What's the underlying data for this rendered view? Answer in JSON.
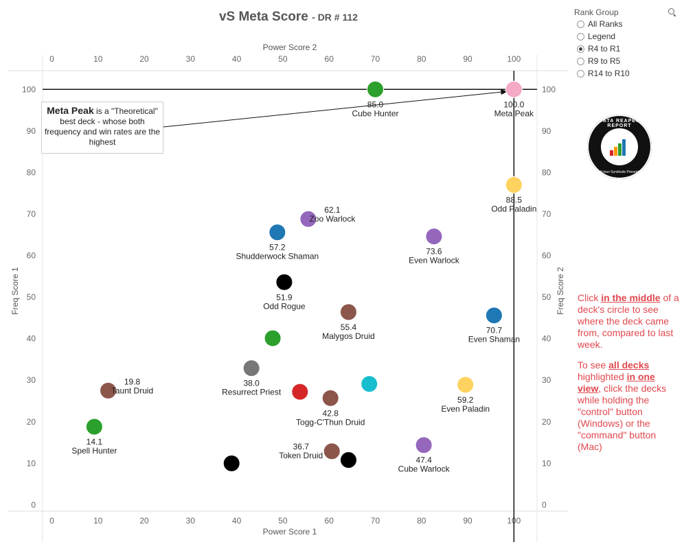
{
  "title": {
    "main": "vS Meta Score",
    "sub": "DR # 112"
  },
  "filter": {
    "title": "Rank Group",
    "search_icon": "search-icon",
    "options": [
      "All Ranks",
      "Legend",
      "R4 to R1",
      "R9 to R5",
      "R14 to R10"
    ],
    "selected": "R4 to R1"
  },
  "logo": {
    "top_text": "DATA REAPER REPORT",
    "bottom_text": "Vicious Syndicate Presents"
  },
  "callout": {
    "bold": "Meta Peak",
    "rest": " is a \"Theoretical\" best deck - whose both frequency and win rates are the highest"
  },
  "note": {
    "p1": [
      {
        "t": "Click ",
        "b": false
      },
      {
        "t": "in the middle",
        "b": true
      },
      {
        "t": " of a deck's circle to see where the deck came from, compared to last week.",
        "b": false
      }
    ],
    "p2": [
      {
        "t": "To see ",
        "b": false
      },
      {
        "t": "all decks ",
        "b": true
      },
      {
        "t": "highlighted ",
        "b": false
      },
      {
        "t": "in one view",
        "b": true
      },
      {
        "t": ", click the decks while holding the \"control\" button (Windows) or the \"command\" button (Mac)",
        "b": false
      }
    ]
  },
  "chart_data": {
    "type": "scatter",
    "xlabel": "Power Score 1",
    "xlabel_top": "Power Score 2",
    "ylabel": "Freq Score 1",
    "ylabel_right": "Freq Score 2",
    "xlim": [
      -2,
      105
    ],
    "ylim": [
      -1.5,
      104.5
    ],
    "xticks": [
      0,
      10,
      20,
      30,
      40,
      50,
      60,
      70,
      80,
      90,
      100
    ],
    "yticks": [
      0,
      10,
      20,
      30,
      40,
      50,
      60,
      70,
      80,
      90,
      100
    ],
    "reference_lines": {
      "x": 100,
      "y": 100
    },
    "points": [
      {
        "x": 100,
        "y": 100,
        "color": "#f4a9c6",
        "score": "100.0",
        "name": "Meta Peak"
      },
      {
        "x": 70,
        "y": 100,
        "color": "#2ca02c",
        "score": "85.0",
        "name": "Cube Hunter"
      },
      {
        "x": 100,
        "y": 77,
        "color": "#fdd25e",
        "score": "88.5",
        "name": "Odd Paladin"
      },
      {
        "x": 55.5,
        "y": 68.8,
        "color": "#9467bd",
        "score": "62.1",
        "name": "Zoo Warlock"
      },
      {
        "x": 48.8,
        "y": 65.6,
        "color": "#1f77b4",
        "score": "57.2",
        "name": "Shudderwock Shaman"
      },
      {
        "x": 82.7,
        "y": 64.6,
        "color": "#9467bd",
        "score": "73.6",
        "name": "Even Warlock"
      },
      {
        "x": 50.3,
        "y": 53.6,
        "color": "#000000",
        "score": "51.9",
        "name": "Odd Rogue"
      },
      {
        "x": 64.2,
        "y": 46.4,
        "color": "#8c564b",
        "score": "55.4",
        "name": "Malygos Druid"
      },
      {
        "x": 95.7,
        "y": 45.6,
        "color": "#1f77b4",
        "score": "70.7",
        "name": "Even Shaman"
      },
      {
        "x": 47.8,
        "y": 40.1,
        "color": "#2ca02c",
        "score": "",
        "name": ""
      },
      {
        "x": 43.2,
        "y": 32.9,
        "color": "#777777",
        "score": "38.0",
        "name": "Resurrect Priest"
      },
      {
        "x": 12.2,
        "y": 27.5,
        "color": "#8c564b",
        "score": "19.8",
        "name": "Taunt Druid"
      },
      {
        "x": 53.7,
        "y": 27.2,
        "color": "#d62728",
        "score": "",
        "name": ""
      },
      {
        "x": 60.3,
        "y": 25.7,
        "color": "#8c564b",
        "score": "42.8",
        "name": "Togg-C'Thun Druid"
      },
      {
        "x": 68.7,
        "y": 29.1,
        "color": "#17becf",
        "score": "",
        "name": ""
      },
      {
        "x": 89.5,
        "y": 28.9,
        "color": "#fdd25e",
        "score": "59.2",
        "name": "Even Paladin"
      },
      {
        "x": 9.2,
        "y": 18.8,
        "color": "#2ca02c",
        "score": "14.1",
        "name": "Spell Hunter"
      },
      {
        "x": 80.5,
        "y": 14.4,
        "color": "#9467bd",
        "score": "47.4",
        "name": "Cube Warlock"
      },
      {
        "x": 60.6,
        "y": 12.9,
        "color": "#8c564b",
        "score": "36.7",
        "name": "Token Druid"
      },
      {
        "x": 64.2,
        "y": 10.8,
        "color": "#000000",
        "score": "",
        "name": ""
      },
      {
        "x": 38.9,
        "y": 10.0,
        "color": "#000000",
        "score": "",
        "name": ""
      }
    ]
  }
}
